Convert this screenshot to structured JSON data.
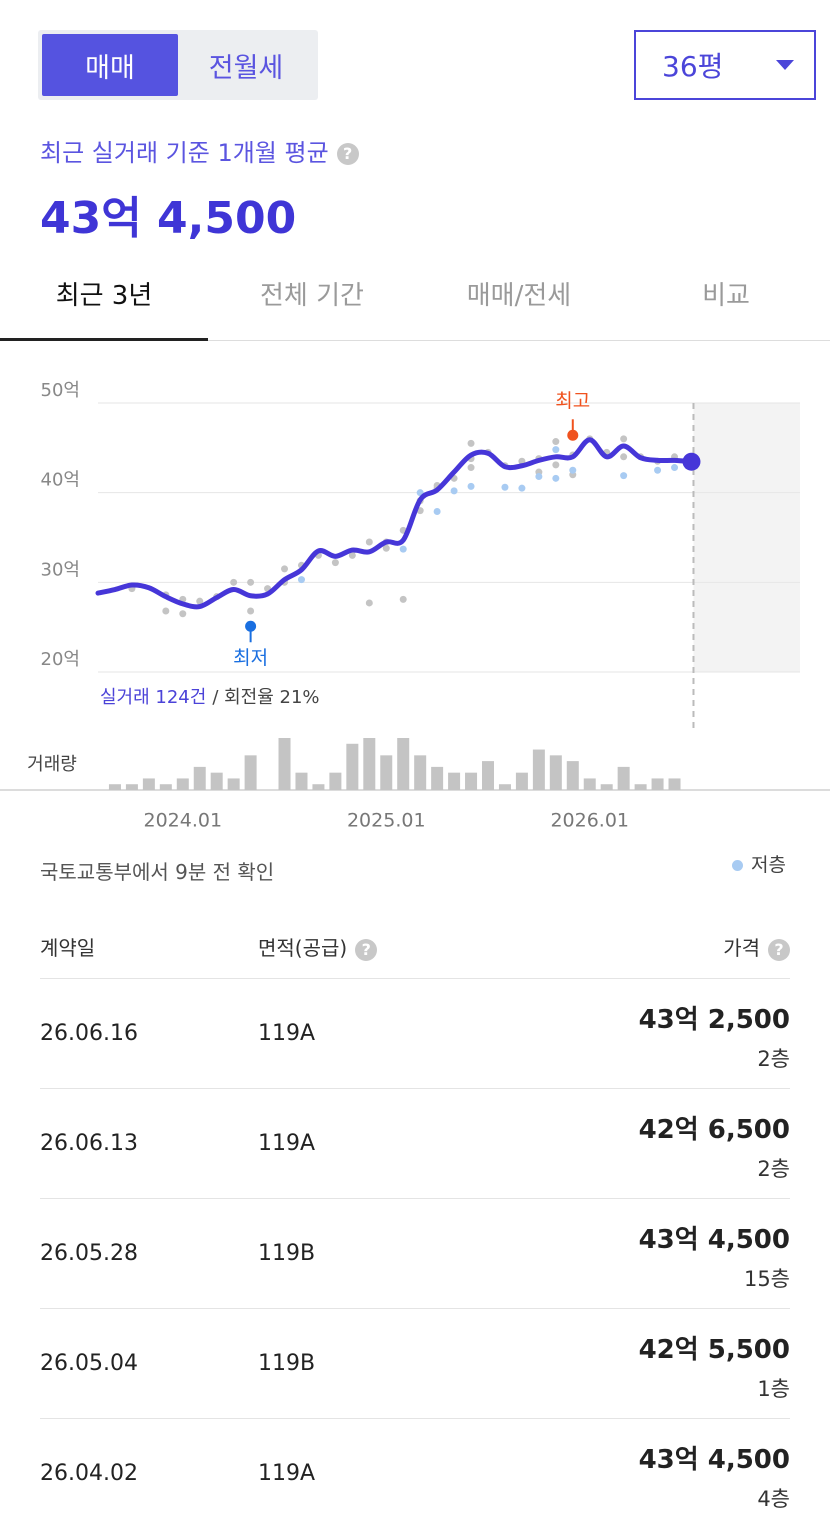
{
  "header": {
    "deal_types": [
      "매매",
      "전월세"
    ],
    "active_deal_type": 0,
    "area_select": "36평"
  },
  "summary": {
    "label": "최근 실거래 기준 1개월 평균",
    "price": "43억 4,500"
  },
  "tabs": {
    "items": [
      "최근 3년",
      "전체 기간",
      "매매/전세",
      "비교"
    ],
    "active": 0
  },
  "chart_data": {
    "type": "line",
    "ylim": [
      20,
      50
    ],
    "yticks": [
      {
        "value": 20,
        "label": "20억"
      },
      {
        "value": 30,
        "label": "30억"
      },
      {
        "value": 40,
        "label": "40억"
      },
      {
        "value": 50,
        "label": "50억"
      }
    ],
    "xlim": [
      -5,
      36.4
    ],
    "xticks": [
      {
        "value": 0,
        "label": "2024.01"
      },
      {
        "value": 12,
        "label": "2025.01"
      },
      {
        "value": 24,
        "label": "2026.01"
      }
    ],
    "grid": true,
    "line": {
      "color": "#4636d8",
      "x": [
        -5,
        -4,
        -3,
        -2,
        -1,
        0,
        1,
        2,
        3,
        4,
        5,
        6,
        7,
        8,
        9,
        10,
        11,
        12,
        13,
        14,
        15,
        16,
        17,
        18,
        19,
        20,
        21,
        22,
        23,
        24,
        25,
        26,
        27,
        28,
        29,
        30
      ],
      "values": [
        28.8,
        29.2,
        29.7,
        29.4,
        28.4,
        27.6,
        27.3,
        28.3,
        29.2,
        28.5,
        28.7,
        30.3,
        31.4,
        33.5,
        32.9,
        33.6,
        33.4,
        34.5,
        34.7,
        39.2,
        40.3,
        42.3,
        44.2,
        44.4,
        42.9,
        43.0,
        43.6,
        44.0,
        44.0,
        45.9,
        44.0,
        45.2,
        43.9,
        43.6,
        43.6,
        43.45
      ]
    },
    "points": [
      {
        "color": "#c4c4c4",
        "x": [
          -3,
          -1,
          -1,
          0,
          0,
          1,
          2,
          3,
          4,
          4,
          5,
          6,
          6,
          7,
          8,
          9,
          10,
          10,
          11,
          11,
          12,
          12,
          13,
          13,
          14,
          14,
          15,
          15,
          16,
          17,
          17,
          17,
          18,
          19,
          20,
          21,
          21,
          22,
          22,
          23,
          23,
          24,
          25,
          26,
          26,
          27,
          28,
          29
        ],
        "values": [
          29.3,
          28.6,
          26.8,
          28.1,
          26.5,
          27.9,
          28.4,
          30.0,
          30.0,
          26.8,
          29.3,
          31.5,
          30.0,
          31.9,
          33.0,
          32.2,
          33.5,
          33.0,
          34.5,
          27.7,
          34.5,
          33.8,
          35.8,
          28.1,
          39.1,
          38.0,
          40.8,
          40.5,
          41.6,
          43.8,
          45.5,
          42.8,
          44.5,
          43.0,
          43.5,
          43.8,
          42.3,
          45.7,
          43.1,
          44.2,
          42.0,
          46.0,
          44.5,
          46.0,
          44.0,
          44.0,
          43.5,
          44.0
        ]
      },
      {
        "name": "저층",
        "color": "#a8cbf2",
        "x": [
          7,
          13,
          14,
          15,
          16,
          17,
          19,
          20,
          21,
          22,
          22,
          23,
          26,
          28,
          29
        ],
        "values": [
          30.3,
          33.7,
          40.0,
          37.9,
          40.2,
          40.7,
          40.6,
          40.5,
          41.8,
          44.8,
          41.6,
          42.5,
          41.9,
          42.5,
          42.8
        ]
      }
    ],
    "annotations": [
      {
        "label": "최고",
        "x": 23,
        "value": 46.4,
        "color": "#f0521e"
      },
      {
        "label": "최저",
        "x": 4,
        "value": 25.1,
        "color": "#1a6fe0"
      }
    ],
    "volume": {
      "label": "거래량",
      "color": "#c4c4c4",
      "ylim": [
        0,
        9
      ],
      "x": [
        -4,
        -3,
        -2,
        -1,
        0,
        1,
        2,
        3,
        4,
        6,
        7,
        8,
        9,
        10,
        11,
        12,
        13,
        14,
        15,
        16,
        17,
        18,
        19,
        20,
        21,
        22,
        23,
        24,
        25,
        26,
        27,
        28,
        29
      ],
      "values": [
        1,
        1,
        2,
        1,
        2,
        4,
        3,
        2,
        6,
        9,
        3,
        1,
        3,
        8,
        9,
        6,
        9,
        6,
        4,
        3,
        3,
        5,
        1,
        3,
        7,
        6,
        5,
        2,
        1,
        4,
        1,
        2,
        2
      ]
    },
    "stats": {
      "count": "실거래 124건",
      "turnover": "/ 회전율 21%"
    }
  },
  "source": "국토교통부에서 9분 전 확인",
  "table": {
    "headers": [
      "계약일",
      "면적(공급)",
      "가격"
    ],
    "rows": [
      [
        "26.06.16",
        "119A",
        "43억 2,500",
        "2층"
      ],
      [
        "26.06.13",
        "119A",
        "42억 6,500",
        "2층"
      ],
      [
        "26.05.28",
        "119B",
        "43억 4,500",
        "15층"
      ],
      [
        "26.05.04",
        "119B",
        "42억 5,500",
        "1층"
      ],
      [
        "26.04.02",
        "119A",
        "43억 4,500",
        "4층"
      ]
    ]
  }
}
